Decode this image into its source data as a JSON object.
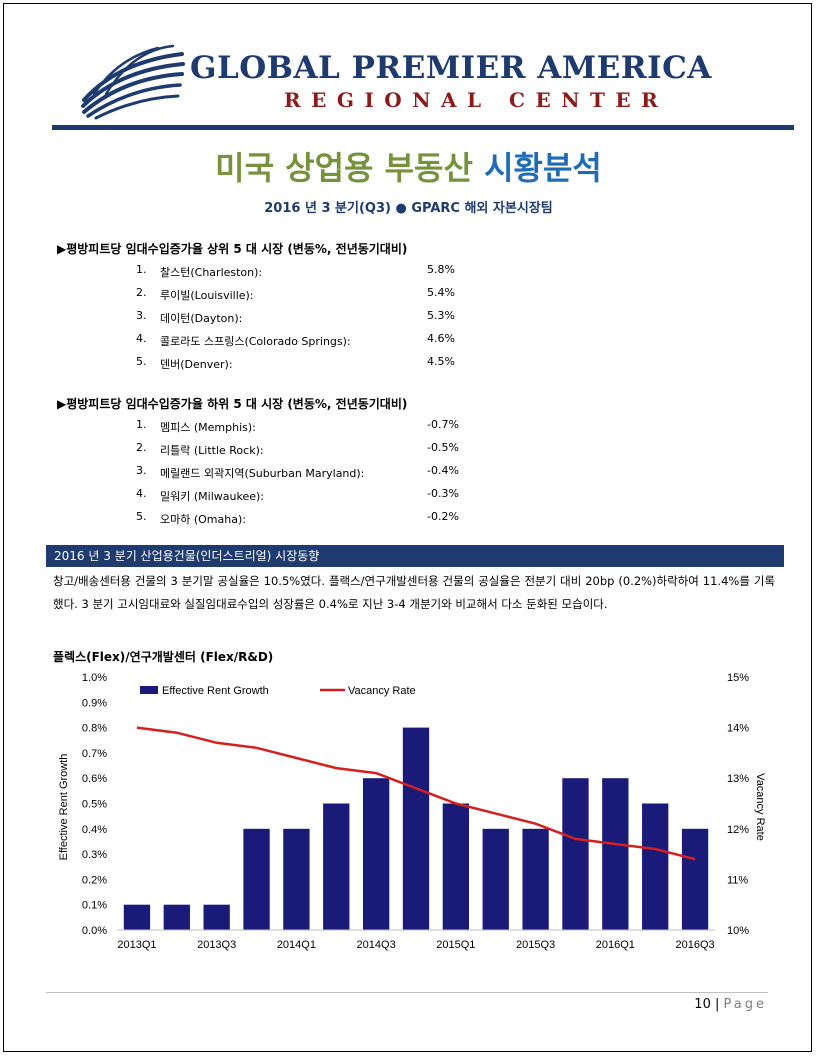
{
  "header": {
    "brand_line1": "GLOBAL PREMIER AMERICA",
    "brand_line2": "REGIONAL CENTER"
  },
  "title": {
    "part1": "미국 상업용 부동산",
    "part2": "시황분석"
  },
  "subtitle": "2016 년 3 분기(Q3) ● GPARC 해외 자본시장팀",
  "top5": {
    "heading": "▶평방피트당 임대수입증가율 상위 5 대 시장 (변동%, 전년동기대비)",
    "items": [
      {
        "n": "1.",
        "name": "찰스턴(Charleston):",
        "value": "5.8%"
      },
      {
        "n": "2.",
        "name": "루이빌(Louisville):",
        "value": "5.4%"
      },
      {
        "n": "3.",
        "name": "데이턴(Dayton):",
        "value": "5.3%"
      },
      {
        "n": "4.",
        "name": "콜로라도 스프링스(Colorado Springs):",
        "value": "4.6%"
      },
      {
        "n": "5.",
        "name": "덴버(Denver):",
        "value": "4.5%"
      }
    ]
  },
  "bottom5": {
    "heading": "▶평방피트당 임대수입증가율 하위 5 대 시장 (변동%, 전년동기대비)",
    "items": [
      {
        "n": "1.",
        "name": "멤피스 (Memphis):",
        "value": "-0.7%"
      },
      {
        "n": "2.",
        "name": "리틀락 (Little Rock):",
        "value": "-0.5%"
      },
      {
        "n": "3.",
        "name": "메릴랜드 외곽지역(Suburban Maryland):",
        "value": "-0.4%"
      },
      {
        "n": "4.",
        "name": "밀워키 (Milwaukee):",
        "value": "-0.3%"
      },
      {
        "n": "5.",
        "name": "오마하 (Omaha):",
        "value": "-0.2%"
      }
    ]
  },
  "section_bar": "2016 년 3 분기 산업용건물(인더스트리얼) 시장동향",
  "paragraph": "창고/배송센터용 건물의 3 분기말 공실율은 10.5%였다. 플랙스/연구개발센터용 건물의 공실율은 전분기 대비 20bp (0.2%)하락하여 11.4%를 기록했다. 3 분기 고시임대료와 실질임대료수입의 성장률은 0.4%로 지난 3-4 개분기와 비교해서 다소 둔화된 모습이다.",
  "chart_title": "플렉스(Flex)/연구개발센터 (Flex/R&D)",
  "chart_data": {
    "type": "bar",
    "categories": [
      "2013Q1",
      "2013Q2",
      "2013Q3",
      "2013Q4",
      "2014Q1",
      "2014Q2",
      "2014Q3",
      "2014Q4",
      "2015Q1",
      "2015Q2",
      "2015Q3",
      "2015Q4",
      "2016Q1",
      "2016Q2",
      "2016Q3"
    ],
    "x_tick_labels": [
      "2013Q1",
      "2013Q3",
      "2014Q1",
      "2014Q3",
      "2015Q1",
      "2015Q3",
      "2016Q1",
      "2016Q3"
    ],
    "series": [
      {
        "name": "Effective Rent Growth",
        "type": "bar",
        "axis": "left",
        "color": "#1a1a78",
        "values": [
          0.1,
          0.1,
          0.1,
          0.4,
          0.4,
          0.5,
          0.6,
          0.8,
          0.5,
          0.4,
          0.4,
          0.6,
          0.6,
          0.5,
          0.4
        ]
      },
      {
        "name": "Vacancy Rate",
        "type": "line",
        "axis": "right",
        "color": "#d42020",
        "values": [
          14.0,
          13.9,
          13.7,
          13.6,
          13.4,
          13.2,
          13.1,
          12.8,
          12.5,
          12.3,
          12.1,
          11.8,
          11.7,
          11.6,
          11.4
        ]
      }
    ],
    "ylabel": "Effective Rent Growth",
    "y2label": "Vacancy Rate",
    "ylim": [
      0,
      1.0
    ],
    "y2lim": [
      10,
      15
    ],
    "yticks": [
      "0.0%",
      "0.1%",
      "0.2%",
      "0.3%",
      "0.4%",
      "0.5%",
      "0.6%",
      "0.7%",
      "0.8%",
      "0.9%",
      "1.0%"
    ],
    "y2ticks": [
      "10%",
      "11%",
      "12%",
      "13%",
      "14%",
      "15%"
    ],
    "legend": "top-left",
    "grid": false
  },
  "footer": {
    "page_number": "10",
    "separator": "|",
    "page_word": "Page"
  }
}
